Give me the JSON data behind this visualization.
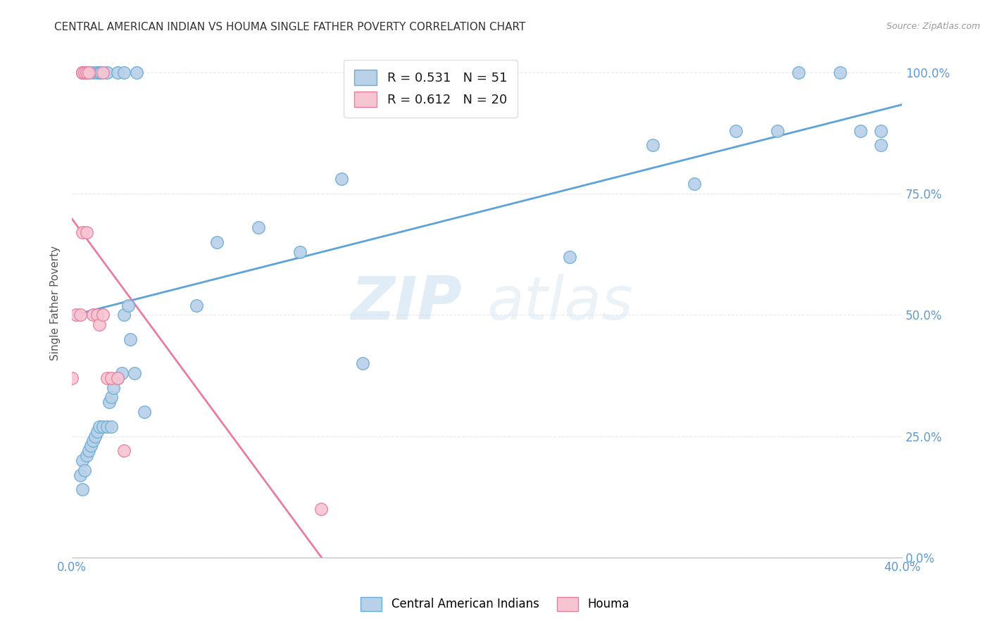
{
  "title": "CENTRAL AMERICAN INDIAN VS HOUMA SINGLE FATHER POVERTY CORRELATION CHART",
  "source": "Source: ZipAtlas.com",
  "ylabel": "Single Father Poverty",
  "xlim": [
    0.0,
    0.4
  ],
  "ylim": [
    0.0,
    1.05
  ],
  "xtick_positions": [
    0.0,
    0.08,
    0.16,
    0.24,
    0.32,
    0.4
  ],
  "xtick_labels": [
    "0.0%",
    "",
    "",
    "",
    "",
    "40.0%"
  ],
  "ytick_labels_right": [
    "0.0%",
    "25.0%",
    "50.0%",
    "75.0%",
    "100.0%"
  ],
  "yticks_right": [
    0.0,
    0.25,
    0.5,
    0.75,
    1.0
  ],
  "r_blue": 0.531,
  "n_blue": 51,
  "r_pink": 0.612,
  "n_pink": 20,
  "legend_labels": [
    "Central American Indians",
    "Houma"
  ],
  "watermark_zip": "ZIP",
  "watermark_atlas": "atlas",
  "blue_color": "#b8d0e8",
  "blue_edge_color": "#6aaed6",
  "pink_color": "#f7c5d2",
  "pink_edge_color": "#e87da0",
  "blue_line_color": "#5ba3d9",
  "pink_line_color": "#e87da0",
  "axis_color": "#5b9bd5",
  "grid_color": "#e8e8e8",
  "blue_scatter": [
    [
      0.005,
      1.0
    ],
    [
      0.005,
      1.0
    ],
    [
      0.008,
      1.0
    ],
    [
      0.01,
      1.0
    ],
    [
      0.012,
      1.0
    ],
    [
      0.013,
      1.0
    ],
    [
      0.014,
      1.0
    ],
    [
      0.017,
      1.0
    ],
    [
      0.022,
      1.0
    ],
    [
      0.025,
      1.0
    ],
    [
      0.031,
      1.0
    ],
    [
      0.005,
      0.2
    ],
    [
      0.007,
      0.21
    ],
    [
      0.008,
      0.22
    ],
    [
      0.009,
      0.23
    ],
    [
      0.01,
      0.24
    ],
    [
      0.011,
      0.25
    ],
    [
      0.012,
      0.26
    ],
    [
      0.013,
      0.27
    ],
    [
      0.015,
      0.27
    ],
    [
      0.017,
      0.27
    ],
    [
      0.019,
      0.27
    ],
    [
      0.004,
      0.17
    ],
    [
      0.006,
      0.18
    ],
    [
      0.018,
      0.32
    ],
    [
      0.019,
      0.33
    ],
    [
      0.02,
      0.35
    ],
    [
      0.022,
      0.37
    ],
    [
      0.024,
      0.38
    ],
    [
      0.025,
      0.5
    ],
    [
      0.027,
      0.52
    ],
    [
      0.028,
      0.45
    ],
    [
      0.03,
      0.38
    ],
    [
      0.035,
      0.3
    ],
    [
      0.06,
      0.52
    ],
    [
      0.07,
      0.65
    ],
    [
      0.09,
      0.68
    ],
    [
      0.11,
      0.63
    ],
    [
      0.13,
      0.78
    ],
    [
      0.14,
      0.4
    ],
    [
      0.24,
      0.62
    ],
    [
      0.28,
      0.85
    ],
    [
      0.3,
      0.77
    ],
    [
      0.32,
      0.88
    ],
    [
      0.34,
      0.88
    ],
    [
      0.35,
      1.0
    ],
    [
      0.37,
      1.0
    ],
    [
      0.38,
      0.88
    ],
    [
      0.39,
      0.85
    ],
    [
      0.39,
      0.88
    ],
    [
      0.005,
      0.14
    ]
  ],
  "pink_scatter": [
    [
      0.005,
      1.0
    ],
    [
      0.005,
      1.0
    ],
    [
      0.006,
      1.0
    ],
    [
      0.007,
      1.0
    ],
    [
      0.008,
      1.0
    ],
    [
      0.015,
      1.0
    ],
    [
      0.0,
      0.37
    ],
    [
      0.002,
      0.5
    ],
    [
      0.004,
      0.5
    ],
    [
      0.005,
      0.67
    ],
    [
      0.007,
      0.67
    ],
    [
      0.01,
      0.5
    ],
    [
      0.012,
      0.5
    ],
    [
      0.013,
      0.48
    ],
    [
      0.015,
      0.5
    ],
    [
      0.017,
      0.37
    ],
    [
      0.019,
      0.37
    ],
    [
      0.022,
      0.37
    ],
    [
      0.025,
      0.22
    ],
    [
      0.12,
      0.1
    ]
  ]
}
